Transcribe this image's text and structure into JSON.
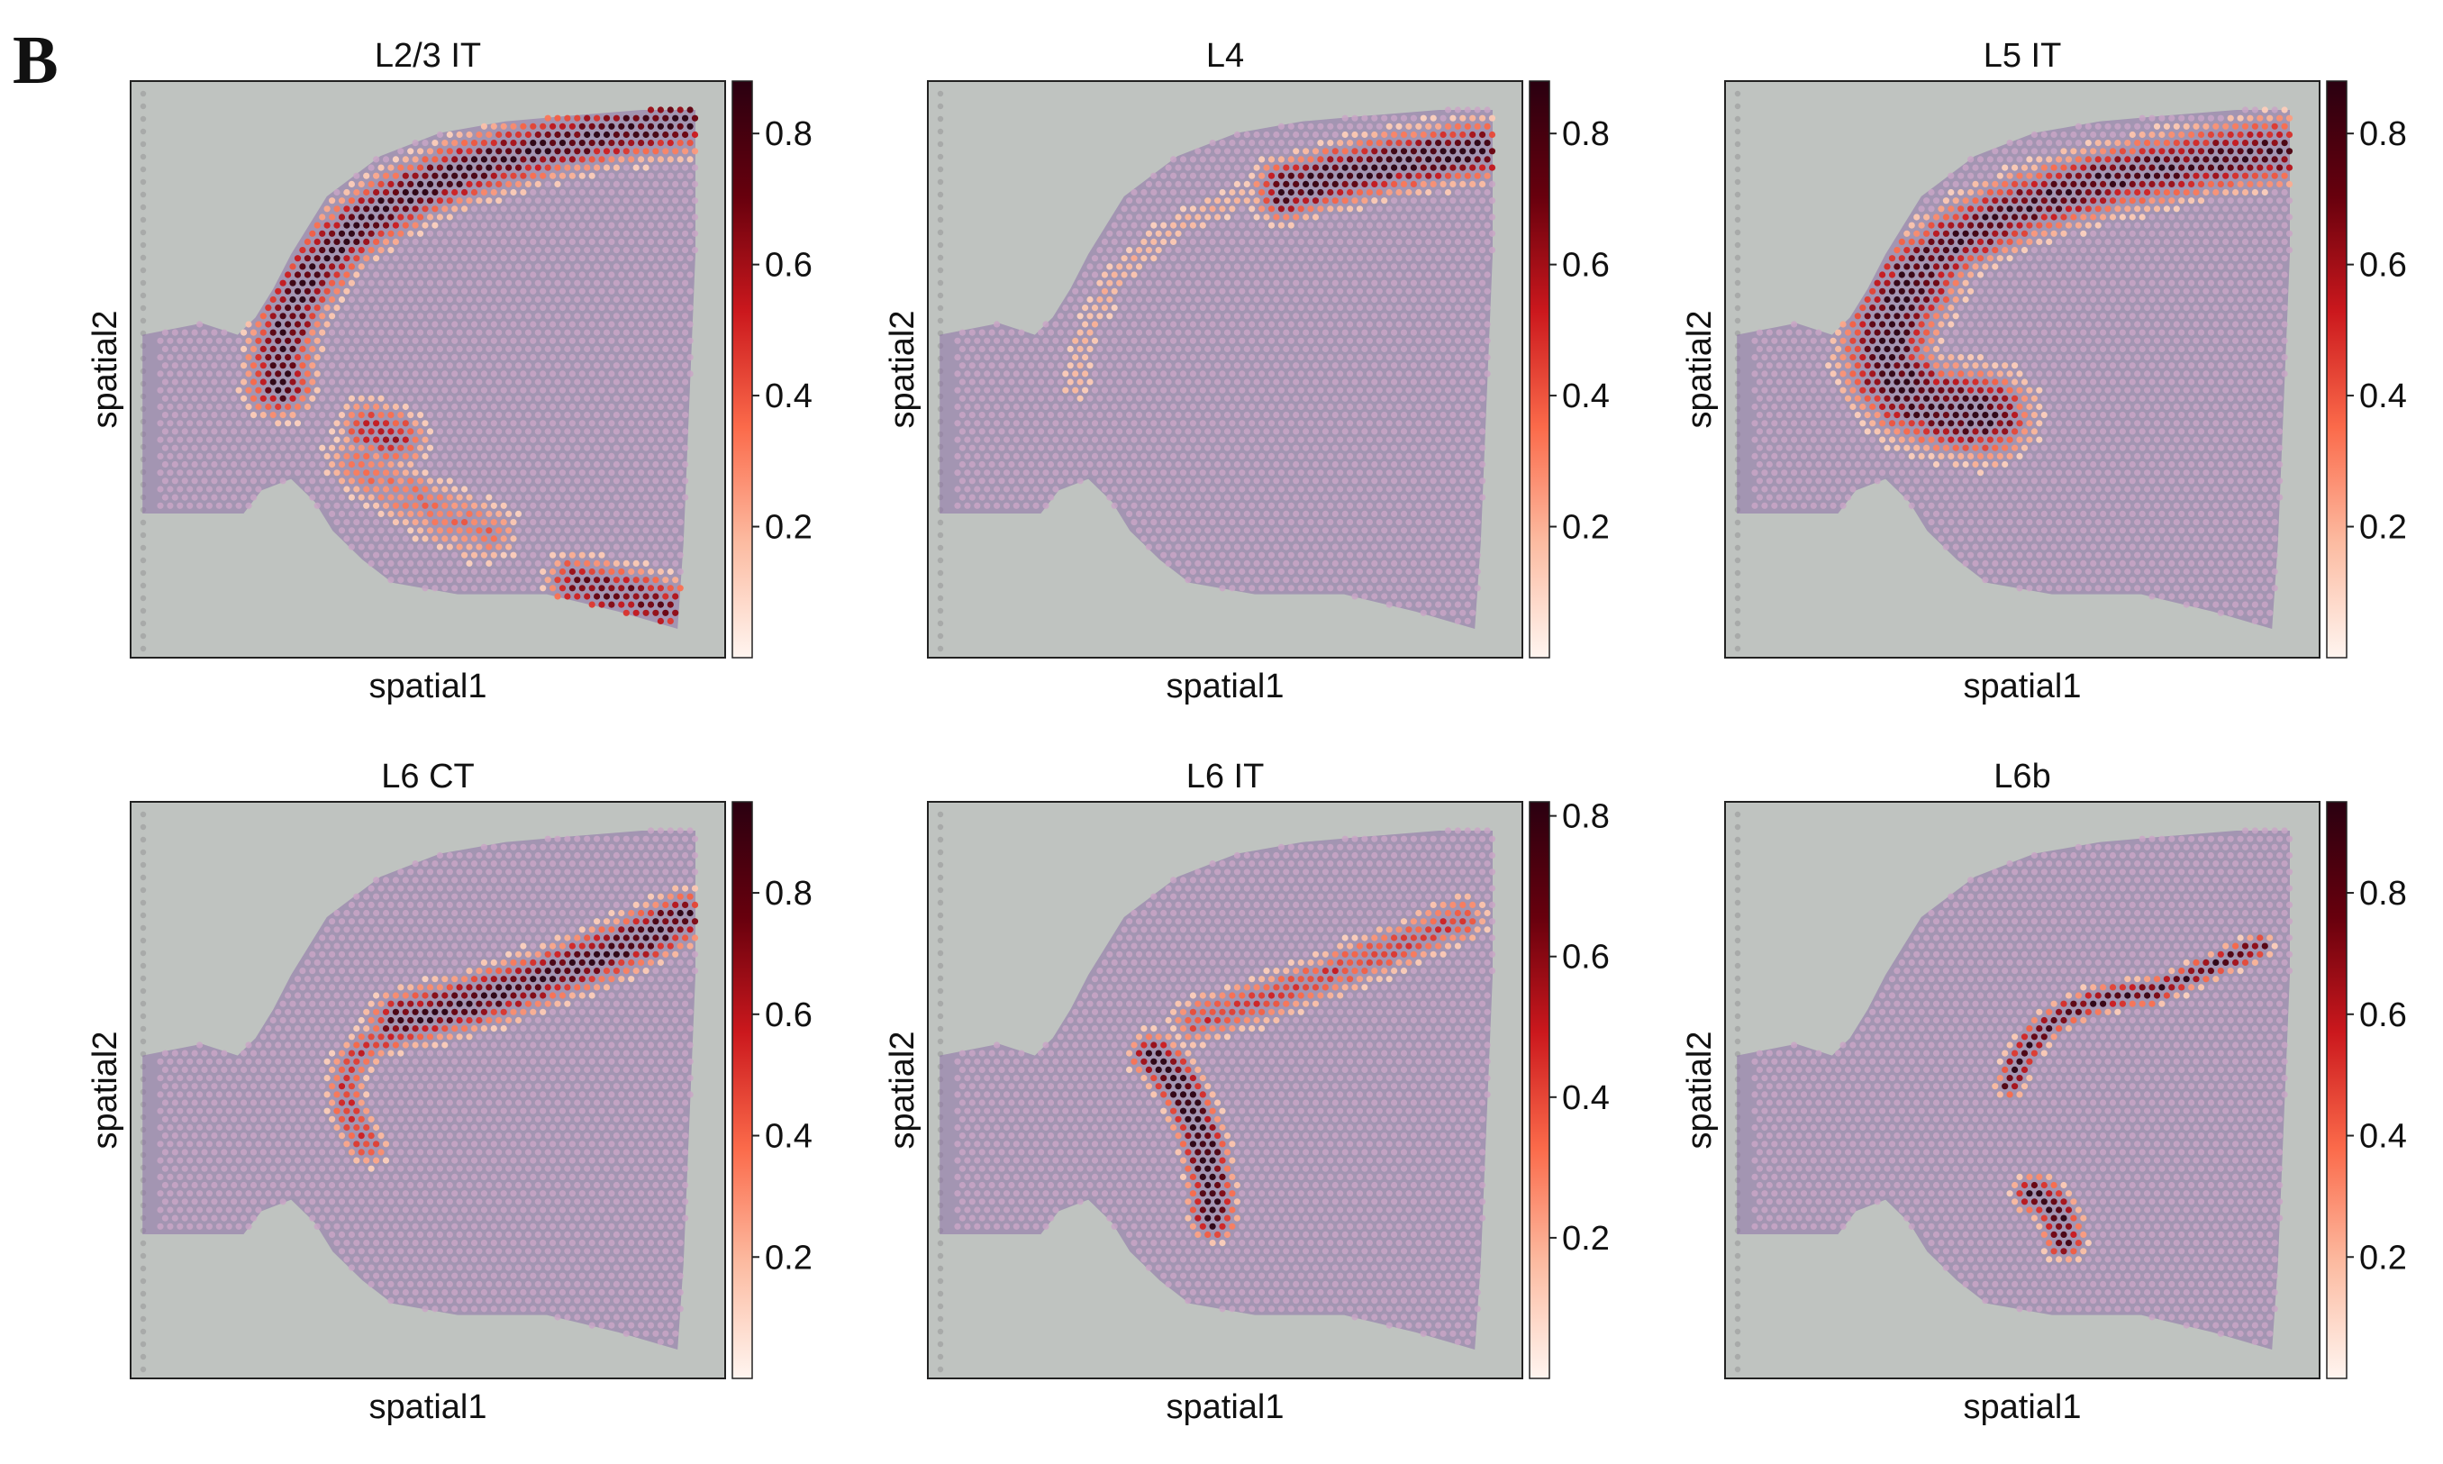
{
  "panel_label": "B",
  "colors": {
    "background_gray": "#bfc3c0",
    "tissue_purple": "#8d6fa6",
    "spot_base": "#c9a6c6",
    "cmap": [
      "#fff5f0",
      "#fcbba1",
      "#fb6a4a",
      "#cb181d",
      "#67000d",
      "#2a0010"
    ]
  },
  "chart_data": [
    {
      "type": "heatmap",
      "title": "L2/3 IT",
      "xlabel": "spatial1",
      "ylabel": "spatial2",
      "colorbar": {
        "ticks": [
          0.2,
          0.4,
          0.6,
          0.8
        ],
        "range": [
          0.0,
          0.88
        ]
      },
      "pattern": "outer_band_upper_and_lower_edges",
      "max_value": 0.88
    },
    {
      "type": "heatmap",
      "title": "L4",
      "xlabel": "spatial1",
      "ylabel": "spatial2",
      "colorbar": {
        "ticks": [
          0.2,
          0.4,
          0.6,
          0.8
        ],
        "range": [
          0.0,
          0.88
        ]
      },
      "pattern": "upper_right_band",
      "max_value": 0.88
    },
    {
      "type": "heatmap",
      "title": "L5 IT",
      "xlabel": "spatial1",
      "ylabel": "spatial2",
      "colorbar": {
        "ticks": [
          0.2,
          0.4,
          0.6,
          0.8
        ],
        "range": [
          0.0,
          0.88
        ]
      },
      "pattern": "thick_arc_band",
      "max_value": 0.88
    },
    {
      "type": "heatmap",
      "title": "L6 CT",
      "xlabel": "spatial1",
      "ylabel": "spatial2",
      "colorbar": {
        "ticks": [
          0.2,
          0.4,
          0.6,
          0.8
        ],
        "range": [
          0.0,
          0.95
        ]
      },
      "pattern": "inner_arc_band",
      "max_value": 0.95
    },
    {
      "type": "heatmap",
      "title": "L6 IT",
      "xlabel": "spatial1",
      "ylabel": "spatial2",
      "colorbar": {
        "ticks": [
          0.2,
          0.4,
          0.6,
          0.8
        ],
        "range": [
          0.0,
          0.82
        ]
      },
      "pattern": "vertical_segment_and_upper_band",
      "max_value": 0.82
    },
    {
      "type": "heatmap",
      "title": "L6b",
      "xlabel": "spatial1",
      "ylabel": "spatial2",
      "colorbar": {
        "ticks": [
          0.2,
          0.4,
          0.6,
          0.8
        ],
        "range": [
          0.0,
          0.95
        ]
      },
      "pattern": "thin_inner_arc",
      "max_value": 0.95
    }
  ]
}
